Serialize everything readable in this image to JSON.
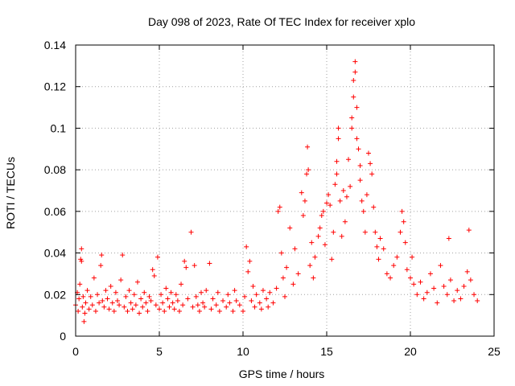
{
  "chart_data": {
    "type": "scatter",
    "title": "Day 098 of 2023, Rate Of TEC Index for receiver xplo",
    "xlabel": "GPS time / hours",
    "ylabel": "ROTI / TECUs",
    "xlim": [
      0,
      25
    ],
    "ylim": [
      0,
      0.14
    ],
    "xticks": [
      0,
      5,
      10,
      15,
      20,
      25
    ],
    "xtick_labels": [
      "0",
      "5",
      "10",
      "15",
      "20",
      "25"
    ],
    "yticks": [
      0,
      0.02,
      0.04,
      0.06,
      0.08,
      0.1,
      0.12,
      0.14
    ],
    "ytick_labels": [
      "0",
      "0.02",
      "0.04",
      "0.06",
      "0.08",
      "0.1",
      "0.12",
      "0.14"
    ],
    "grid": true,
    "marker": "+",
    "color": "#ff0000",
    "series": [
      {
        "points": [
          [
            0.0,
            0.015
          ],
          [
            0.1,
            0.021
          ],
          [
            0.15,
            0.012
          ],
          [
            0.2,
            0.018
          ],
          [
            0.25,
            0.025
          ],
          [
            0.3,
            0.037
          ],
          [
            0.35,
            0.036
          ],
          [
            0.35,
            0.042
          ],
          [
            0.4,
            0.014
          ],
          [
            0.45,
            0.019
          ],
          [
            0.5,
            0.007
          ],
          [
            0.55,
            0.011
          ],
          [
            0.6,
            0.016
          ],
          [
            0.7,
            0.022
          ],
          [
            0.8,
            0.013
          ],
          [
            0.9,
            0.019
          ],
          [
            1.0,
            0.015
          ],
          [
            1.1,
            0.028
          ],
          [
            1.2,
            0.012
          ],
          [
            1.3,
            0.02
          ],
          [
            1.4,
            0.016
          ],
          [
            1.5,
            0.034
          ],
          [
            1.55,
            0.039
          ],
          [
            1.6,
            0.017
          ],
          [
            1.7,
            0.014
          ],
          [
            1.8,
            0.022
          ],
          [
            1.9,
            0.018
          ],
          [
            2.0,
            0.013
          ],
          [
            2.1,
            0.024
          ],
          [
            2.2,
            0.016
          ],
          [
            2.3,
            0.012
          ],
          [
            2.4,
            0.021
          ],
          [
            2.5,
            0.017
          ],
          [
            2.6,
            0.015
          ],
          [
            2.7,
            0.027
          ],
          [
            2.8,
            0.039
          ],
          [
            2.9,
            0.014
          ],
          [
            3.0,
            0.019
          ],
          [
            3.1,
            0.012
          ],
          [
            3.2,
            0.022
          ],
          [
            3.3,
            0.016
          ],
          [
            3.4,
            0.013
          ],
          [
            3.5,
            0.02
          ],
          [
            3.6,
            0.015
          ],
          [
            3.7,
            0.026
          ],
          [
            3.8,
            0.011
          ],
          [
            3.9,
            0.018
          ],
          [
            4.0,
            0.014
          ],
          [
            4.1,
            0.021
          ],
          [
            4.2,
            0.016
          ],
          [
            4.3,
            0.012
          ],
          [
            4.4,
            0.019
          ],
          [
            4.5,
            0.017
          ],
          [
            4.6,
            0.032
          ],
          [
            4.7,
            0.029
          ],
          [
            4.8,
            0.015
          ],
          [
            4.9,
            0.038
          ],
          [
            5.0,
            0.013
          ],
          [
            5.1,
            0.02
          ],
          [
            5.2,
            0.016
          ],
          [
            5.3,
            0.012
          ],
          [
            5.4,
            0.023
          ],
          [
            5.5,
            0.018
          ],
          [
            5.6,
            0.014
          ],
          [
            5.7,
            0.021
          ],
          [
            5.8,
            0.016
          ],
          [
            5.9,
            0.013
          ],
          [
            6.0,
            0.02
          ],
          [
            6.1,
            0.017
          ],
          [
            6.2,
            0.012
          ],
          [
            6.3,
            0.025
          ],
          [
            6.4,
            0.015
          ],
          [
            6.5,
            0.036
          ],
          [
            6.6,
            0.033
          ],
          [
            6.7,
            0.018
          ],
          [
            6.9,
            0.05
          ],
          [
            7.0,
            0.014
          ],
          [
            7.1,
            0.034
          ],
          [
            7.2,
            0.019
          ],
          [
            7.3,
            0.015
          ],
          [
            7.4,
            0.012
          ],
          [
            7.5,
            0.021
          ],
          [
            7.6,
            0.016
          ],
          [
            7.7,
            0.014
          ],
          [
            7.8,
            0.022
          ],
          [
            8.0,
            0.035
          ],
          [
            8.1,
            0.013
          ],
          [
            8.2,
            0.018
          ],
          [
            8.4,
            0.015
          ],
          [
            8.5,
            0.021
          ],
          [
            8.6,
            0.012
          ],
          [
            8.8,
            0.017
          ],
          [
            9.0,
            0.014
          ],
          [
            9.1,
            0.02
          ],
          [
            9.2,
            0.016
          ],
          [
            9.4,
            0.012
          ],
          [
            9.5,
            0.022
          ],
          [
            9.6,
            0.017
          ],
          [
            9.8,
            0.015
          ],
          [
            10.0,
            0.012
          ],
          [
            10.1,
            0.019
          ],
          [
            10.2,
            0.043
          ],
          [
            10.3,
            0.031
          ],
          [
            10.4,
            0.036
          ],
          [
            10.5,
            0.017
          ],
          [
            10.6,
            0.024
          ],
          [
            10.7,
            0.014
          ],
          [
            10.8,
            0.02
          ],
          [
            11.0,
            0.016
          ],
          [
            11.1,
            0.013
          ],
          [
            11.2,
            0.022
          ],
          [
            11.4,
            0.018
          ],
          [
            11.5,
            0.014
          ],
          [
            11.6,
            0.021
          ],
          [
            11.8,
            0.016
          ],
          [
            12.0,
            0.023
          ],
          [
            12.1,
            0.06
          ],
          [
            12.2,
            0.062
          ],
          [
            12.3,
            0.04
          ],
          [
            12.4,
            0.028
          ],
          [
            12.5,
            0.019
          ],
          [
            12.6,
            0.033
          ],
          [
            12.8,
            0.052
          ],
          [
            13.0,
            0.025
          ],
          [
            13.1,
            0.042
          ],
          [
            13.3,
            0.03
          ],
          [
            13.5,
            0.069
          ],
          [
            13.6,
            0.058
          ],
          [
            13.7,
            0.065
          ],
          [
            13.8,
            0.078
          ],
          [
            13.85,
            0.091
          ],
          [
            13.9,
            0.08
          ],
          [
            14.0,
            0.034
          ],
          [
            14.1,
            0.045
          ],
          [
            14.2,
            0.028
          ],
          [
            14.3,
            0.038
          ],
          [
            14.5,
            0.048
          ],
          [
            14.6,
            0.052
          ],
          [
            14.7,
            0.058
          ],
          [
            14.8,
            0.06
          ],
          [
            14.9,
            0.044
          ],
          [
            15.0,
            0.064
          ],
          [
            15.1,
            0.068
          ],
          [
            15.2,
            0.063
          ],
          [
            15.3,
            0.037
          ],
          [
            15.4,
            0.05
          ],
          [
            15.5,
            0.073
          ],
          [
            15.6,
            0.078
          ],
          [
            15.6,
            0.084
          ],
          [
            15.7,
            0.095
          ],
          [
            15.7,
            0.1
          ],
          [
            15.8,
            0.065
          ],
          [
            15.9,
            0.048
          ],
          [
            16.0,
            0.07
          ],
          [
            16.1,
            0.055
          ],
          [
            16.2,
            0.067
          ],
          [
            16.3,
            0.085
          ],
          [
            16.4,
            0.072
          ],
          [
            16.5,
            0.1
          ],
          [
            16.5,
            0.105
          ],
          [
            16.6,
            0.115
          ],
          [
            16.6,
            0.123
          ],
          [
            16.7,
            0.127
          ],
          [
            16.7,
            0.132
          ],
          [
            16.8,
            0.11
          ],
          [
            16.8,
            0.095
          ],
          [
            16.9,
            0.09
          ],
          [
            17.0,
            0.082
          ],
          [
            17.0,
            0.075
          ],
          [
            17.1,
            0.065
          ],
          [
            17.2,
            0.06
          ],
          [
            17.3,
            0.05
          ],
          [
            17.4,
            0.068
          ],
          [
            17.5,
            0.088
          ],
          [
            17.6,
            0.083
          ],
          [
            17.7,
            0.078
          ],
          [
            17.8,
            0.062
          ],
          [
            17.9,
            0.05
          ],
          [
            18.0,
            0.043
          ],
          [
            18.1,
            0.037
          ],
          [
            18.2,
            0.047
          ],
          [
            18.4,
            0.042
          ],
          [
            18.6,
            0.03
          ],
          [
            18.8,
            0.028
          ],
          [
            19.0,
            0.034
          ],
          [
            19.2,
            0.038
          ],
          [
            19.4,
            0.05
          ],
          [
            19.5,
            0.06
          ],
          [
            19.6,
            0.055
          ],
          [
            19.7,
            0.045
          ],
          [
            19.8,
            0.032
          ],
          [
            20.0,
            0.028
          ],
          [
            20.1,
            0.038
          ],
          [
            20.2,
            0.025
          ],
          [
            20.4,
            0.02
          ],
          [
            20.6,
            0.026
          ],
          [
            20.8,
            0.018
          ],
          [
            21.0,
            0.021
          ],
          [
            21.2,
            0.03
          ],
          [
            21.4,
            0.023
          ],
          [
            21.6,
            0.016
          ],
          [
            21.8,
            0.034
          ],
          [
            22.0,
            0.024
          ],
          [
            22.2,
            0.02
          ],
          [
            22.3,
            0.047
          ],
          [
            22.4,
            0.027
          ],
          [
            22.6,
            0.017
          ],
          [
            22.8,
            0.022
          ],
          [
            23.0,
            0.018
          ],
          [
            23.2,
            0.024
          ],
          [
            23.4,
            0.031
          ],
          [
            23.5,
            0.051
          ],
          [
            23.6,
            0.027
          ],
          [
            23.8,
            0.02
          ],
          [
            24.0,
            0.017
          ]
        ]
      }
    ]
  }
}
